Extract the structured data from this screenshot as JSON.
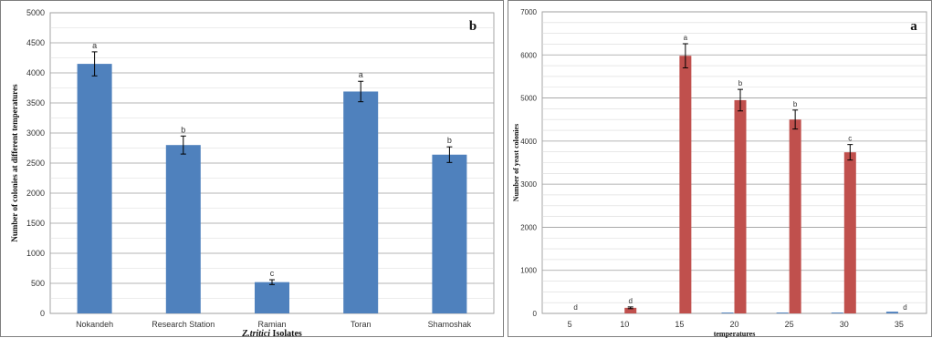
{
  "chart_data": [
    {
      "type": "bar",
      "panel_label": "b",
      "title": "",
      "xlabel_italic": "Z.tritici",
      "xlabel_rest": " Isolates",
      "ylabel": "Number of colonies at different temperatures",
      "categories": [
        "Nokandeh",
        "Research Station",
        "Ramian",
        "Toran",
        "Shamoshak"
      ],
      "values": [
        4150,
        2800,
        520,
        3690,
        2640
      ],
      "errors": [
        200,
        150,
        40,
        170,
        130
      ],
      "letters": [
        "a",
        "b",
        "c",
        "a",
        "b"
      ],
      "ylim": [
        0,
        5000
      ],
      "yticks": [
        0,
        500,
        1000,
        1500,
        2000,
        2500,
        3000,
        3500,
        4000,
        4500,
        5000
      ],
      "grid": true,
      "bar_color": "#4f81bd"
    },
    {
      "type": "bar",
      "panel_label": "a",
      "title": "",
      "xlabel": "temperatures",
      "ylabel": "Number of yeast colonies",
      "categories": [
        "5",
        "10",
        "15",
        "20",
        "25",
        "30",
        "35"
      ],
      "values": [
        0,
        130,
        5980,
        4950,
        4500,
        3740,
        0
      ],
      "errors": [
        0,
        20,
        280,
        250,
        220,
        180,
        0
      ],
      "letters": [
        "d",
        "d",
        "a",
        "b",
        "b",
        "c",
        "d"
      ],
      "minor_values": [
        0,
        0,
        0,
        20,
        20,
        20,
        40
      ],
      "ylim": [
        0,
        7000
      ],
      "yticks": [
        0,
        1000,
        2000,
        3000,
        4000,
        5000,
        6000,
        7000
      ],
      "grid": true,
      "bar_color": "#c0504d",
      "minor_bar_color": "#4f81bd"
    }
  ]
}
